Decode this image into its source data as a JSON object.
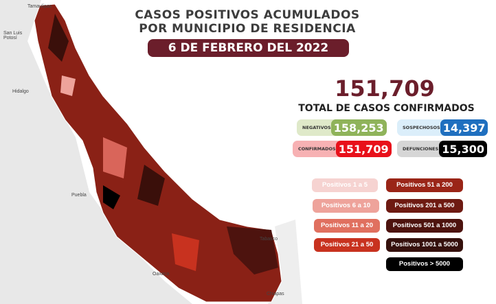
{
  "title_line1": "CASOS POSITIVOS ACUMULADOS",
  "title_line2": "POR MUNICIPIO DE RESIDENCIA",
  "date": "6 DE FEBRERO DEL 2022",
  "total": "151,709",
  "total_label": "TOTAL DE CASOS CONFIRMADOS",
  "stats": [
    {
      "label": "NEGATIVOS",
      "value": "158,253",
      "color": "#8fb35a"
    },
    {
      "label": "SOSPECHOSOS",
      "value": "14,397",
      "color": "#1f6fbf"
    },
    {
      "label": "CONFIRMADOS",
      "value": "151,709",
      "color": "#e8101a"
    },
    {
      "label": "DEFUNCIONES",
      "value": "15,300",
      "color": "#000000"
    }
  ],
  "legend": [
    {
      "label": "Positivos 1 a 5",
      "color": "#f6d3d1"
    },
    {
      "label": "Positivos 6 a 10",
      "color": "#eea39b"
    },
    {
      "label": "Positivos 11 a 20",
      "color": "#e0705f"
    },
    {
      "label": "Positivos 21 a 50",
      "color": "#c8321f"
    },
    {
      "label": "Positivos 51 a 200",
      "color": "#9a2517"
    },
    {
      "label": "Positivos 201 a 500",
      "color": "#6e1a12"
    },
    {
      "label": "Positivos 501 a 1000",
      "color": "#4d130e"
    },
    {
      "label": "Positivos 1001 a 5000",
      "color": "#35100c"
    },
    {
      "label": "Positivos > 5000",
      "color": "#000000"
    }
  ],
  "neighbors": [
    "Tamaulipas",
    "San Luis Potosí",
    "Hidalgo",
    "Puebla",
    "Oaxaca",
    "Tabasco",
    "Chiapas"
  ]
}
